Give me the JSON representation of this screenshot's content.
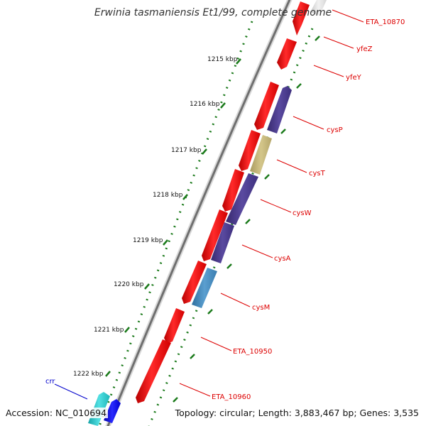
{
  "title": "Erwinia tasmaniensis Et1/99, complete genome",
  "footer": {
    "accession": "Accession: NC_010694",
    "summary": "Topology: circular; Length: 3,883,467 bp; Genes: 3,535"
  },
  "colors": {
    "forward_cds": "#ff0000",
    "reverse_cds_dark": "#4b3d8f",
    "reverse_cds_light": "#4a8ec2",
    "reverse_cds_khaki": "#c8b87a",
    "cyan_cds": "#27c6c9",
    "blue_cds": "#0000ee",
    "backbone": "#8a8a8a",
    "tick": "#1b7a1b",
    "label_red": "#dd0000",
    "label_blue": "#0000cc"
  },
  "ruler": {
    "labels": [
      "1215 kbp",
      "1216 kbp",
      "1217 kbp",
      "1218 kbp",
      "1219 kbp",
      "1220 kbp",
      "1221 kbp",
      "1222 kbp"
    ]
  },
  "genes": [
    {
      "name": "ETA_10870",
      "strand": "forward",
      "color": "red"
    },
    {
      "name": "yfeZ",
      "strand": "forward",
      "color": "red"
    },
    {
      "name": "yfeY",
      "strand": "forward",
      "color": "red"
    },
    {
      "name": "cysP",
      "strand": "reverse",
      "color": "purple"
    },
    {
      "name": "cysT",
      "strand": "reverse",
      "color": "khaki"
    },
    {
      "name": "cysW",
      "strand": "reverse",
      "color": "purple"
    },
    {
      "name": "cysA",
      "strand": "reverse",
      "color": "purple"
    },
    {
      "name": "cysM",
      "strand": "reverse",
      "color": "light-blue"
    },
    {
      "name": "ETA_10950",
      "strand": "forward",
      "color": "red"
    },
    {
      "name": "ETA_10960",
      "strand": "forward",
      "color": "red"
    },
    {
      "name": "crr",
      "strand": "reverse",
      "color": "cyan"
    }
  ]
}
